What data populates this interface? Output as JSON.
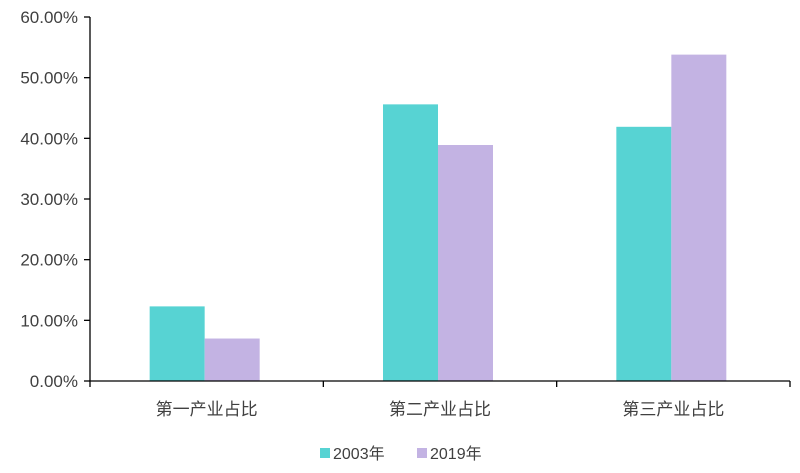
{
  "chart_data": {
    "type": "bar",
    "title": "",
    "xlabel": "",
    "ylabel": "",
    "categories": [
      "第一产业占比",
      "第二产业占比",
      "第三产业占比"
    ],
    "series": [
      {
        "name": "2003年",
        "values": [
          12.3,
          45.6,
          41.9
        ],
        "color": "#57d3d3"
      },
      {
        "name": "2019年",
        "values": [
          7.0,
          38.9,
          53.8
        ],
        "color": "#c3b3e3"
      }
    ],
    "ylim": [
      0,
      60
    ],
    "yticks": [
      "0.00%",
      "10.00%",
      "20.00%",
      "30.00%",
      "40.00%",
      "50.00%",
      "60.00%"
    ],
    "grid": false,
    "legend": "bottom"
  }
}
